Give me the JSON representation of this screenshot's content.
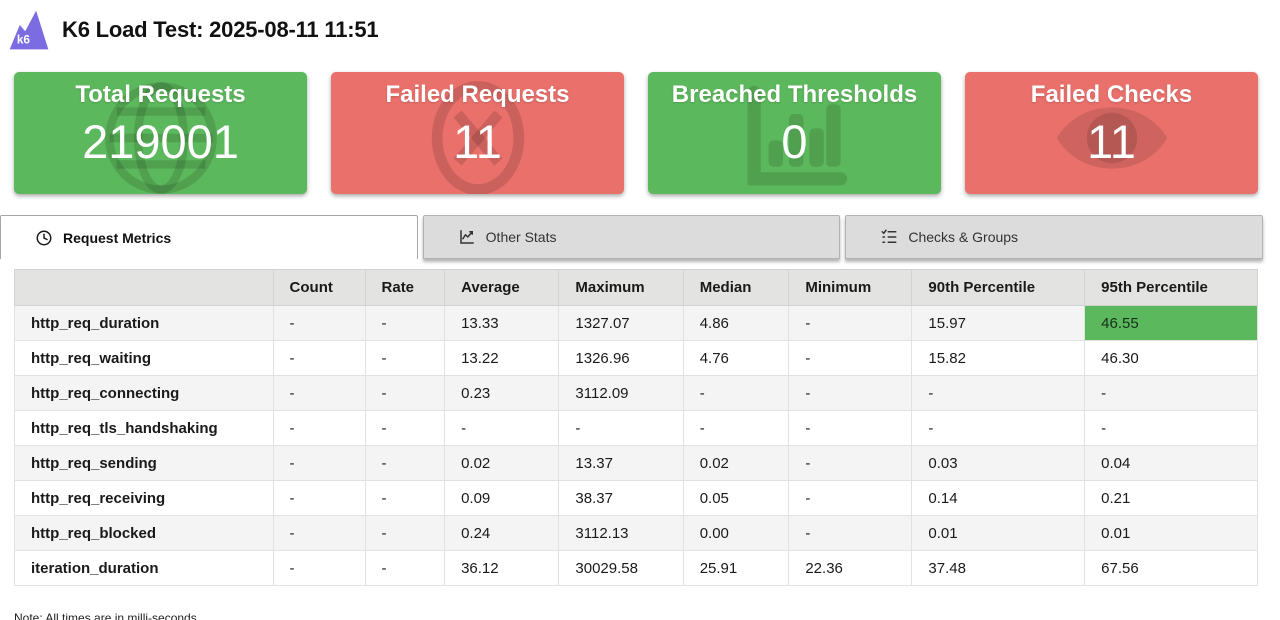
{
  "header": {
    "title": "K6 Load Test: 2025-08-11 11:51",
    "logo_text": "k6"
  },
  "cards": [
    {
      "title": "Total Requests",
      "value": "219001",
      "status": "success",
      "icon": "globe-icon",
      "color": "#5cb85c"
    },
    {
      "title": "Failed Requests",
      "value": "11",
      "status": "danger",
      "icon": "circle-x-icon",
      "color": "#e9706b"
    },
    {
      "title": "Breached Thresholds",
      "value": "0",
      "status": "success",
      "icon": "bar-chart-icon",
      "color": "#5cb85c"
    },
    {
      "title": "Failed Checks",
      "value": "11",
      "status": "danger",
      "icon": "eye-icon",
      "color": "#e9706b"
    }
  ],
  "tabs": [
    {
      "label": "Request Metrics",
      "icon": "clock-icon",
      "active": true
    },
    {
      "label": "Other Stats",
      "icon": "line-chart-icon",
      "active": false
    },
    {
      "label": "Checks & Groups",
      "icon": "checklist-icon",
      "active": false
    }
  ],
  "table": {
    "columns": [
      "",
      "Count",
      "Rate",
      "Average",
      "Maximum",
      "Median",
      "Minimum",
      "90th Percentile",
      "95th Percentile"
    ],
    "rows": [
      {
        "cells": [
          "http_req_duration",
          "-",
          "-",
          "13.33",
          "1327.07",
          "4.86",
          "-",
          "15.97",
          "46.55"
        ],
        "highlight_col": 8
      },
      {
        "cells": [
          "http_req_waiting",
          "-",
          "-",
          "13.22",
          "1326.96",
          "4.76",
          "-",
          "15.82",
          "46.30"
        ],
        "highlight_col": null
      },
      {
        "cells": [
          "http_req_connecting",
          "-",
          "-",
          "0.23",
          "3112.09",
          "-",
          "-",
          "-",
          "-"
        ],
        "highlight_col": null
      },
      {
        "cells": [
          "http_req_tls_handshaking",
          "-",
          "-",
          "-",
          "-",
          "-",
          "-",
          "-",
          "-"
        ],
        "highlight_col": null
      },
      {
        "cells": [
          "http_req_sending",
          "-",
          "-",
          "0.02",
          "13.37",
          "0.02",
          "-",
          "0.03",
          "0.04"
        ],
        "highlight_col": null
      },
      {
        "cells": [
          "http_req_receiving",
          "-",
          "-",
          "0.09",
          "38.37",
          "0.05",
          "-",
          "0.14",
          "0.21"
        ],
        "highlight_col": null
      },
      {
        "cells": [
          "http_req_blocked",
          "-",
          "-",
          "0.24",
          "3112.13",
          "0.00",
          "-",
          "0.01",
          "0.01"
        ],
        "highlight_col": null
      },
      {
        "cells": [
          "iteration_duration",
          "-",
          "-",
          "36.12",
          "30029.58",
          "25.91",
          "22.36",
          "37.48",
          "67.56"
        ],
        "highlight_col": null
      }
    ]
  },
  "note": "Note: All times are in milli-seconds",
  "colors": {
    "success": "#5cb85c",
    "danger": "#e9706b",
    "logo_purple": "#7b6ce2",
    "tab_inactive_bg": "#dcdcdc",
    "table_header_bg": "#e3e3e1",
    "highlight_cell": "#5cb85c"
  }
}
